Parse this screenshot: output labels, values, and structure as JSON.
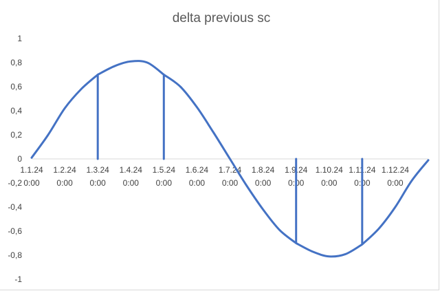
{
  "chart_data": {
    "type": "line",
    "title": "delta previous sc",
    "xlabel": "",
    "ylabel": "",
    "ylim": [
      -1,
      1
    ],
    "y_ticks": [
      1,
      0.8,
      0.6,
      0.4,
      0.2,
      0,
      -0.2,
      -0.4,
      -0.6,
      -0.8,
      -1
    ],
    "y_tick_labels": [
      "1",
      "0,8",
      "0,6",
      "0,4",
      "0,2",
      "0",
      "-0,2",
      "-0,4",
      "-0,6",
      "-0,8",
      "-1"
    ],
    "x_categories": [
      {
        "date": "1.1.24",
        "time": "0:00"
      },
      {
        "date": "1.2.24",
        "time": "0:00"
      },
      {
        "date": "1.3.24",
        "time": "0:00"
      },
      {
        "date": "1.4.24",
        "time": "0:00"
      },
      {
        "date": "1.5.24",
        "time": "0:00"
      },
      {
        "date": "1.6.24",
        "time": "0:00"
      },
      {
        "date": "1.7.24",
        "time": "0:00"
      },
      {
        "date": "1.8.24",
        "time": "0:00"
      },
      {
        "date": "1.9.24",
        "time": "0:00"
      },
      {
        "date": "1.10.24",
        "time": "0:00"
      },
      {
        "date": "1.11.24",
        "time": "0:00"
      },
      {
        "date": "1.12.24",
        "time": "0:00"
      }
    ],
    "series": [
      {
        "color": "#4472c4",
        "description_points": [
          {
            "x": 0,
            "y": 0.01
          },
          {
            "x": 0.5,
            "y": 0.2
          },
          {
            "x": 1,
            "y": 0.42
          },
          {
            "x": 1.5,
            "y": 0.58
          },
          {
            "x": 2,
            "y": 0.7
          },
          {
            "x": 2,
            "y": 0
          },
          {
            "x": 2,
            "y": 0.7
          },
          {
            "x": 2.5,
            "y": 0.77
          },
          {
            "x": 3,
            "y": 0.81
          },
          {
            "x": 3.5,
            "y": 0.8
          },
          {
            "x": 4,
            "y": 0.7
          },
          {
            "x": 4,
            "y": 0
          },
          {
            "x": 4,
            "y": 0.7
          },
          {
            "x": 4.5,
            "y": 0.6
          },
          {
            "x": 5,
            "y": 0.43
          },
          {
            "x": 5.5,
            "y": 0.22
          },
          {
            "x": 6,
            "y": 0.0
          },
          {
            "x": 6.5,
            "y": -0.22
          },
          {
            "x": 7,
            "y": -0.42
          },
          {
            "x": 7.5,
            "y": -0.59
          },
          {
            "x": 8,
            "y": -0.7
          },
          {
            "x": 8,
            "y": 0
          },
          {
            "x": 8,
            "y": -0.7
          },
          {
            "x": 8.5,
            "y": -0.77
          },
          {
            "x": 9,
            "y": -0.81
          },
          {
            "x": 9.5,
            "y": -0.79
          },
          {
            "x": 10,
            "y": -0.71
          },
          {
            "x": 10,
            "y": 0
          },
          {
            "x": 10,
            "y": -0.71
          },
          {
            "x": 10.5,
            "y": -0.58
          },
          {
            "x": 11,
            "y": -0.4
          },
          {
            "x": 11.5,
            "y": -0.18
          },
          {
            "x": 12,
            "y": -0.01
          }
        ]
      }
    ],
    "grid": false,
    "legend": "none"
  }
}
